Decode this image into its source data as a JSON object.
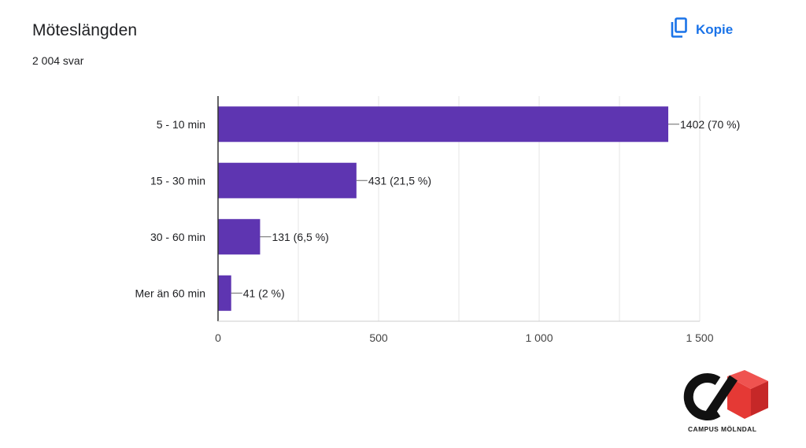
{
  "header": {
    "title": "Möteslängden",
    "response_count": "2 004 svar",
    "copy_label": "Kopie"
  },
  "logo": {
    "text": "CAMPUS MÖLNDAL"
  },
  "colors": {
    "bar": "#5e35b1",
    "accent": "#1a73e8",
    "logo_red": "#e53935",
    "logo_black": "#111111"
  },
  "chart_data": {
    "type": "bar",
    "orientation": "horizontal",
    "title": "",
    "xlabel": "",
    "ylabel": "",
    "categories": [
      "5 - 10 min",
      "15 - 30 min",
      "30 - 60 min",
      "Mer än 60 min"
    ],
    "values": [
      1402,
      431,
      131,
      41
    ],
    "data_labels": [
      "1402 (70 %)",
      "431 (21,5 %)",
      "131 (6,5 %)",
      "41 (2 %)"
    ],
    "xlim": [
      0,
      1500
    ],
    "x_ticks": [
      0,
      500,
      1000,
      1500
    ],
    "x_tick_labels": [
      "0",
      "500",
      "1 000",
      "1 500"
    ],
    "grid": true,
    "legend": "none"
  }
}
